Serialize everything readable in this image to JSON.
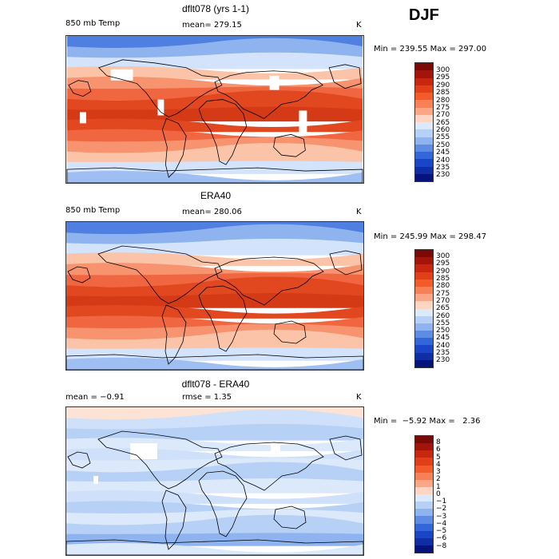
{
  "season": "DJF",
  "panels": [
    {
      "title": "dflt078 (yrs 1-1)",
      "variable": "850 mb Temp",
      "stat1": "mean= 279.15",
      "stat2": "",
      "units": "K",
      "minmax": "Min = 239.55 Max = 297.00",
      "colorbar": {
        "labels": [
          "300",
          "295",
          "290",
          "285",
          "280",
          "275",
          "270",
          "265",
          "260",
          "255",
          "250",
          "245",
          "240",
          "235",
          "230"
        ],
        "colors": [
          "#7a0a06",
          "#a3140a",
          "#c9260f",
          "#e23e17",
          "#f25b2a",
          "#f78157",
          "#fba687",
          "#fdd6c3",
          "#dbe9fb",
          "#b7d1f6",
          "#8eb3ee",
          "#5f8ce3",
          "#3366d9",
          "#1b45c8",
          "#0f2da5",
          "#06137a"
        ]
      }
    },
    {
      "title": "ERA40",
      "variable": "850 mb Temp",
      "stat1": "mean= 280.06",
      "stat2": "",
      "units": "K",
      "minmax": "Min = 245.99 Max = 298.47",
      "colorbar": {
        "labels": [
          "300",
          "295",
          "290",
          "285",
          "280",
          "275",
          "270",
          "265",
          "260",
          "255",
          "250",
          "245",
          "240",
          "235",
          "230"
        ],
        "colors": [
          "#7a0a06",
          "#a3140a",
          "#c9260f",
          "#e23e17",
          "#f25b2a",
          "#f78157",
          "#fba687",
          "#fdd6c3",
          "#dbe9fb",
          "#b7d1f6",
          "#8eb3ee",
          "#5f8ce3",
          "#3366d9",
          "#1b45c8",
          "#0f2da5",
          "#06137a"
        ]
      }
    },
    {
      "title": "dflt078 - ERA40",
      "variable": "",
      "stat1": "mean =  −0.91",
      "stat2": "rmse =   1.35",
      "units": "K",
      "minmax": "Min =  −5.92 Max =   2.36",
      "colorbar": {
        "labels": [
          "8",
          "6",
          "5",
          "4",
          "3",
          "2",
          "1",
          "0",
          "−1",
          "−2",
          "−3",
          "−4",
          "−5",
          "−6",
          "−8"
        ],
        "colors": [
          "#7a0a06",
          "#a3140a",
          "#c9260f",
          "#e23e17",
          "#f25b2a",
          "#f78157",
          "#fba687",
          "#fdd6c3",
          "#dbe9fb",
          "#b7d1f6",
          "#8eb3ee",
          "#5f8ce3",
          "#3366d9",
          "#1b45c8",
          "#0f2da5",
          "#06137a"
        ]
      }
    }
  ]
}
